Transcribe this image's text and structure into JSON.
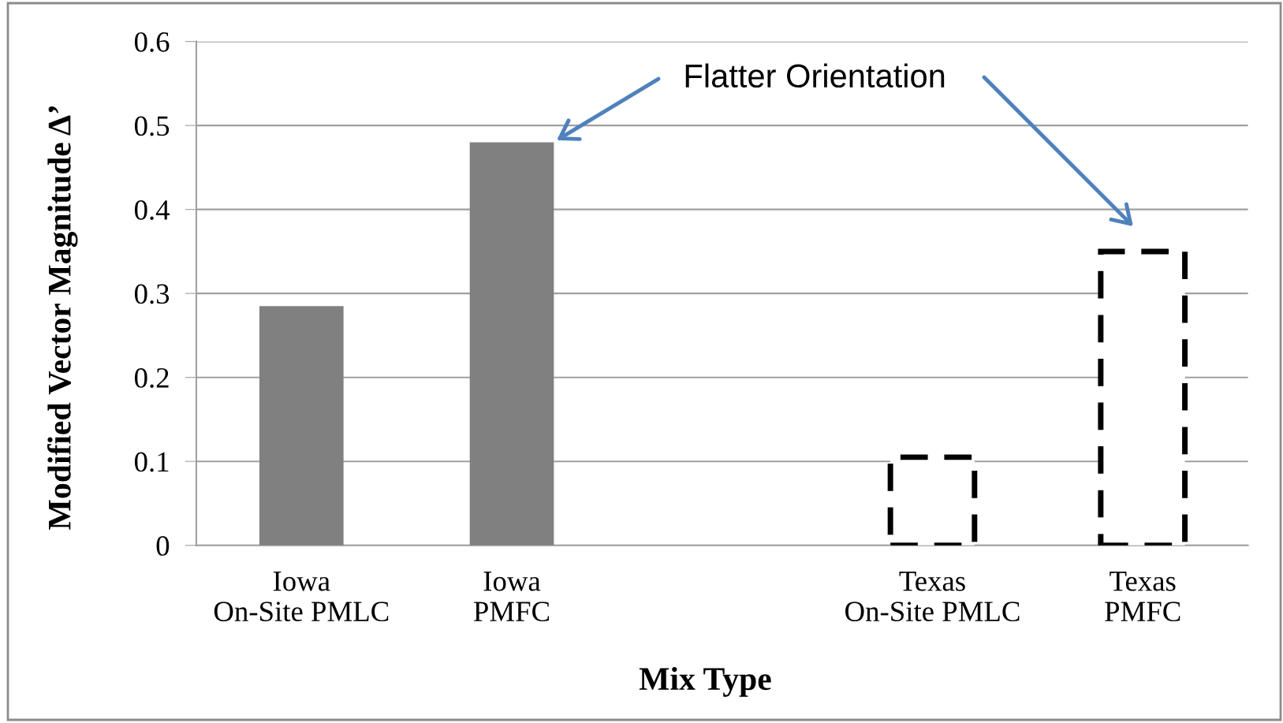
{
  "chart_data": {
    "type": "bar",
    "xlabel": "Mix Type",
    "ylabel": "Modified Vector Magnitude Δ’",
    "categories": [
      "Iowa\nOn-Site PMLC",
      "Iowa\nPMFC",
      null,
      "Texas\nOn-Site PMLC",
      "Texas\nPMFC"
    ],
    "series": [
      {
        "color": "#808080",
        "line_style": "solid",
        "values": [
          0.285,
          0.48,
          null,
          null,
          null
        ]
      },
      {
        "color": "#000000",
        "line_style": "dashed",
        "values": [
          null,
          null,
          null,
          0.105,
          0.35
        ]
      }
    ],
    "ylim": [
      0,
      0.6
    ],
    "yticks": [
      0,
      0.1,
      0.2,
      0.3,
      0.4,
      0.5,
      0.6
    ],
    "grid": "y",
    "annotations": [
      "Flatter Orientation"
    ]
  }
}
